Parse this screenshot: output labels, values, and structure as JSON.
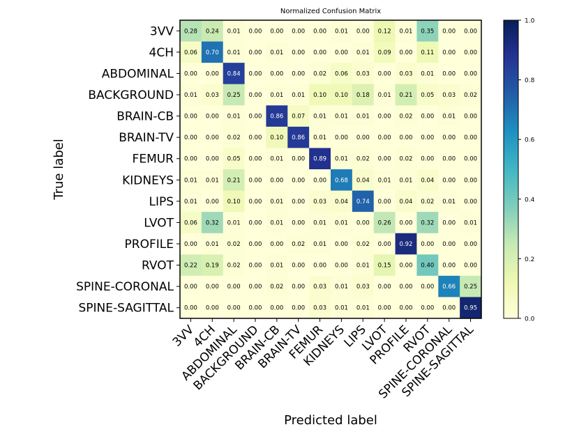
{
  "chart_data": {
    "type": "heatmap",
    "title": "Normalized Confusion Matrix",
    "xlabel": "Predicted label",
    "ylabel": "True label",
    "labels": [
      "3VV",
      "4CH",
      "ABDOMINAL",
      "BACKGROUND",
      "BRAIN-CB",
      "BRAIN-TV",
      "FEMUR",
      "KIDNEYS",
      "LIPS",
      "LVOT",
      "PROFILE",
      "RVOT",
      "SPINE-CORONAL",
      "SPINE-SAGITTAL"
    ],
    "matrix": [
      [
        0.28,
        0.24,
        0.01,
        0.0,
        0.0,
        0.0,
        0.0,
        0.01,
        0.0,
        0.12,
        0.01,
        0.35,
        0.0,
        0.0
      ],
      [
        0.06,
        0.7,
        0.01,
        0.0,
        0.01,
        0.0,
        0.0,
        0.0,
        0.01,
        0.09,
        0.0,
        0.11,
        0.0,
        0.0
      ],
      [
        0.0,
        0.0,
        0.84,
        0.0,
        0.0,
        0.0,
        0.02,
        0.06,
        0.03,
        0.0,
        0.03,
        0.01,
        0.0,
        0.0
      ],
      [
        0.01,
        0.03,
        0.25,
        0.0,
        0.01,
        0.01,
        0.1,
        0.1,
        0.18,
        0.01,
        0.21,
        0.05,
        0.03,
        0.02
      ],
      [
        0.0,
        0.0,
        0.01,
        0.0,
        0.86,
        0.07,
        0.01,
        0.01,
        0.01,
        0.0,
        0.02,
        0.0,
        0.01,
        0.0
      ],
      [
        0.0,
        0.0,
        0.02,
        0.0,
        0.1,
        0.86,
        0.01,
        0.0,
        0.0,
        0.0,
        0.0,
        0.0,
        0.0,
        0.0
      ],
      [
        0.0,
        0.0,
        0.05,
        0.0,
        0.01,
        0.0,
        0.89,
        0.01,
        0.02,
        0.0,
        0.02,
        0.0,
        0.0,
        0.0
      ],
      [
        0.01,
        0.01,
        0.21,
        0.0,
        0.0,
        0.0,
        0.0,
        0.68,
        0.04,
        0.01,
        0.01,
        0.04,
        0.0,
        0.0
      ],
      [
        0.01,
        0.0,
        0.1,
        0.0,
        0.01,
        0.0,
        0.03,
        0.04,
        0.74,
        0.0,
        0.04,
        0.02,
        0.01,
        0.0
      ],
      [
        0.06,
        0.32,
        0.01,
        0.0,
        0.01,
        0.0,
        0.01,
        0.01,
        0.0,
        0.26,
        0.0,
        0.32,
        0.0,
        0.01
      ],
      [
        0.0,
        0.01,
        0.02,
        0.0,
        0.0,
        0.02,
        0.01,
        0.0,
        0.02,
        0.0,
        0.92,
        0.0,
        0.0,
        0.0
      ],
      [
        0.22,
        0.19,
        0.02,
        0.0,
        0.01,
        0.0,
        0.0,
        0.0,
        0.01,
        0.15,
        0.0,
        0.4,
        0.0,
        0.0
      ],
      [
        0.0,
        0.0,
        0.0,
        0.0,
        0.02,
        0.0,
        0.03,
        0.01,
        0.03,
        0.0,
        0.0,
        0.0,
        0.66,
        0.25
      ],
      [
        0.0,
        0.0,
        0.0,
        0.0,
        0.0,
        0.0,
        0.03,
        0.01,
        0.01,
        0.0,
        0.0,
        0.0,
        0.0,
        0.95
      ]
    ],
    "value_range": [
      0.0,
      1.0
    ],
    "colorbar_ticks": [
      "0.0",
      "0.2",
      "0.4",
      "0.6",
      "0.8",
      "1.0"
    ],
    "colormap": "YlGnBu",
    "colormap_stops": [
      "#ffffd9",
      "#edf8b1",
      "#c7e9b4",
      "#7fcdbb",
      "#41b6c4",
      "#1d91c0",
      "#225ea8",
      "#253494",
      "#081d58"
    ],
    "text_dark_color": "#000000",
    "text_light_color": "#ffffff",
    "text_threshold": 0.5,
    "grid": false,
    "colorbar_position": "right"
  }
}
